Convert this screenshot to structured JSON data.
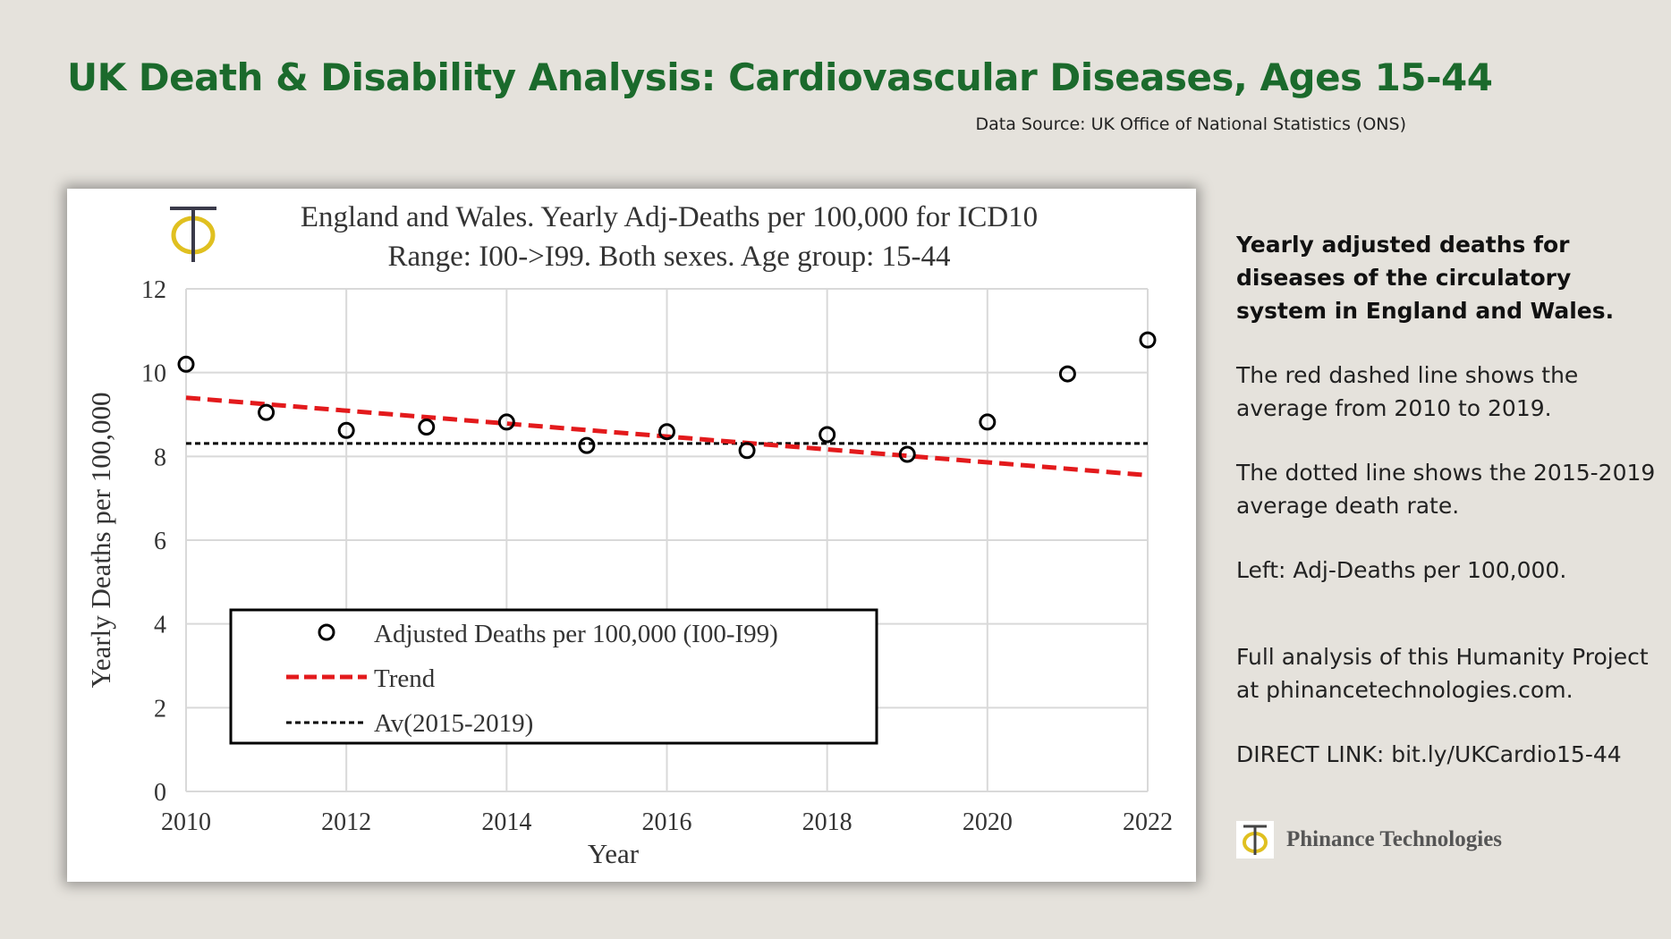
{
  "header": {
    "title": "UK Death & Disability Analysis: Cardiovascular Diseases, Ages 15-44",
    "source": "Data Source: UK Office of National Statistics (ONS)"
  },
  "chart_data": {
    "type": "scatter",
    "title": [
      "England and Wales. Yearly Adj-Deaths per 100,000 for ICD10",
      "Range: I00->I99. Both sexes. Age group: 15-44"
    ],
    "xlabel": "Year",
    "ylabel": "Yearly Deaths per 100,000",
    "xlim": [
      2010,
      2022
    ],
    "ylim": [
      0,
      12
    ],
    "xticks": [
      "2010",
      "2012",
      "2014",
      "2016",
      "2018",
      "2020",
      "2022"
    ],
    "yticks": [
      "0",
      "2",
      "4",
      "6",
      "8",
      "10",
      "12"
    ],
    "grid": true,
    "series": [
      {
        "name": "Adjusted Deaths per 100,000 (I00-I99)",
        "marker": "circle",
        "color": "#000000",
        "x": [
          2010,
          2011,
          2012,
          2013,
          2014,
          2015,
          2016,
          2017,
          2018,
          2019,
          2020,
          2021,
          2022
        ],
        "y": [
          10.2,
          9.05,
          8.62,
          8.7,
          8.82,
          8.26,
          8.59,
          8.14,
          8.52,
          8.05,
          8.82,
          9.97,
          10.78
        ]
      },
      {
        "name": "Trend",
        "style": "dashed",
        "color": "#e31a1c",
        "x": [
          2010,
          2022
        ],
        "y": [
          9.4,
          7.55
        ]
      },
      {
        "name": "Av(2015-2019)",
        "style": "dotted",
        "color": "#000000",
        "x": [
          2010,
          2022
        ],
        "y": [
          8.31,
          8.31
        ]
      }
    ],
    "legend_position": "bottom-left"
  },
  "side": {
    "heading": "Yearly adjusted deaths for diseases of the circulatory system in England and Wales.",
    "p1": "The red dashed line shows the average from 2010 to 2019.",
    "p2": "The dotted line shows the 2015-2019 average death rate.",
    "p3": "Left: Adj-Deaths per 100,000.",
    "p4": "Full analysis of this Humanity Project at phinancetechnologies.com.",
    "p5": "DIRECT LINK: bit.ly/UKCardio15-44",
    "brand": "Phinance Technologies"
  }
}
